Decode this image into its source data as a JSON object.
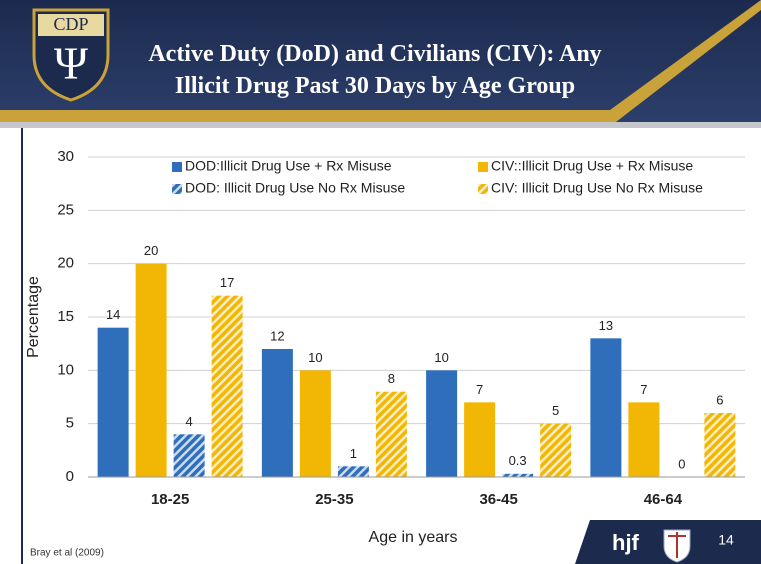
{
  "chart_data": {
    "type": "bar",
    "title": "Active Duty (DoD) and Civilians (CIV): Any Illicit Drug Past 30 Days by Age Group",
    "logo": "CDP",
    "logo_symbol": "Ψ",
    "categories": [
      "18-25",
      "25-35",
      "36-45",
      "46-64"
    ],
    "series": [
      {
        "name": "DOD:Illicit Drug Use + Rx Misuse",
        "color": "#2f6eba",
        "hatch": false,
        "values": [
          14,
          12,
          10,
          13
        ]
      },
      {
        "name": "CIV::Illicit Drug Use + Rx Misuse",
        "color": "#f2b705",
        "hatch": false,
        "values": [
          20,
          10,
          7,
          7
        ]
      },
      {
        "name": "DOD: Illicit Drug Use No Rx Misuse",
        "color": "#2f6eba",
        "hatch": true,
        "values": [
          4,
          1,
          0.3,
          0
        ]
      },
      {
        "name": "CIV: Illicit Drug Use No Rx Misuse",
        "color": "#f2b705",
        "hatch": true,
        "values": [
          17,
          8,
          5,
          6
        ]
      }
    ],
    "ylim": [
      0,
      30
    ],
    "yticks": [
      0,
      5,
      10,
      15,
      20,
      25,
      30
    ],
    "grid": true,
    "ylabel": "Percentage",
    "xlabel": "Age in years",
    "source": "Bray et al (2009)",
    "footer_brand": "hjf",
    "page_number": "14"
  }
}
